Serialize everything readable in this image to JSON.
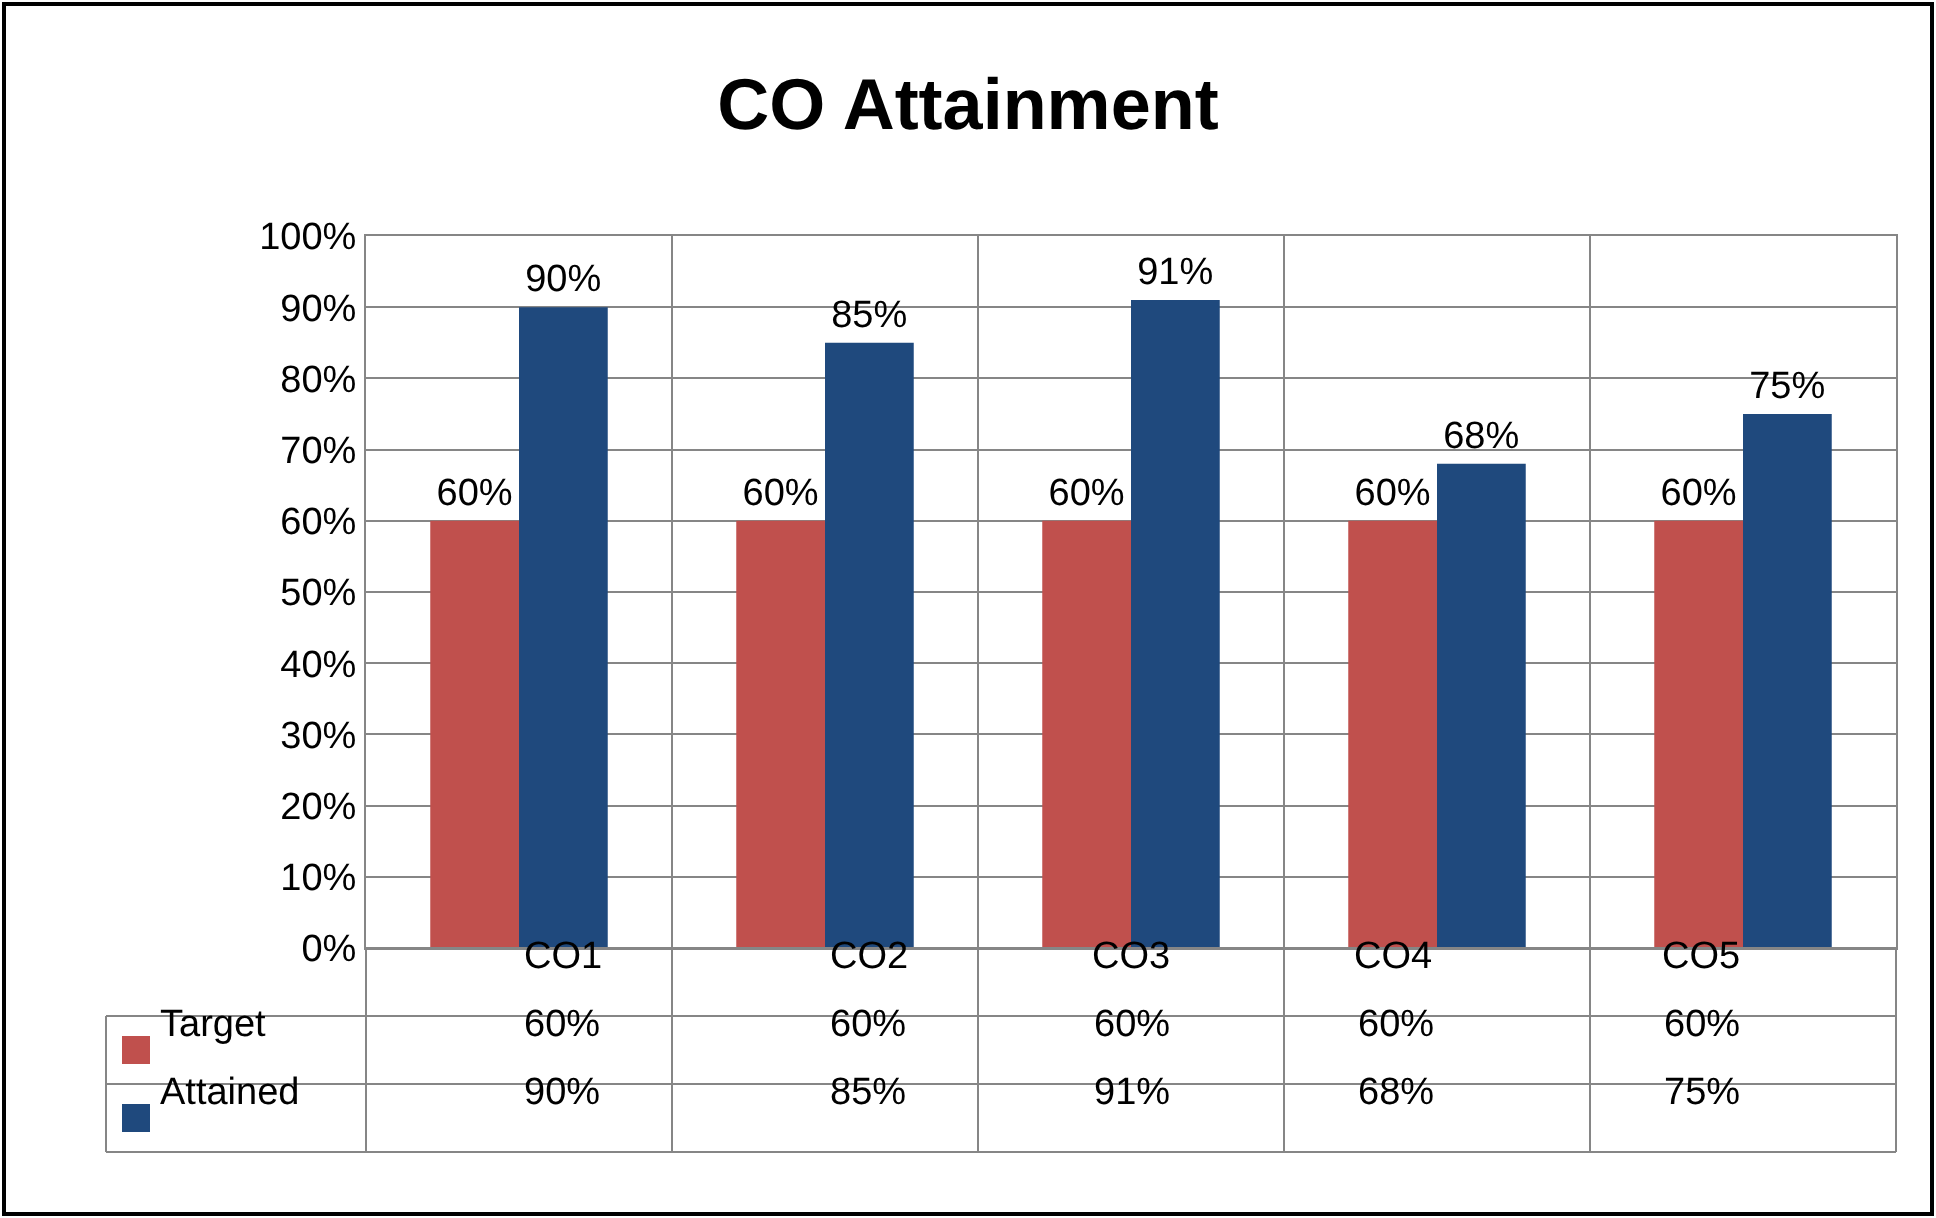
{
  "chart_data": {
    "type": "bar",
    "title": "CO Attainment",
    "categories": [
      "CO1",
      "CO2",
      "CO3",
      "CO4",
      "CO5"
    ],
    "series": [
      {
        "name": "Target",
        "color": "#c0504d",
        "values": [
          60,
          60,
          60,
          60,
          60
        ],
        "value_labels": [
          "60%",
          "60%",
          "60%",
          "60%",
          "60%"
        ]
      },
      {
        "name": "Attained",
        "color": "#1f497d",
        "values": [
          90,
          85,
          91,
          68,
          75
        ],
        "value_labels": [
          "90%",
          "85%",
          "91%",
          "68%",
          "75%"
        ]
      }
    ],
    "ylim": [
      0,
      100
    ],
    "yticks": [
      {
        "value": 0,
        "label": "0%"
      },
      {
        "value": 10,
        "label": "10%"
      },
      {
        "value": 20,
        "label": "20%"
      },
      {
        "value": 30,
        "label": "30%"
      },
      {
        "value": 40,
        "label": "40%"
      },
      {
        "value": 50,
        "label": "50%"
      },
      {
        "value": 60,
        "label": "60%"
      },
      {
        "value": 70,
        "label": "70%"
      },
      {
        "value": 80,
        "label": "80%"
      },
      {
        "value": 90,
        "label": "90%"
      },
      {
        "value": 100,
        "label": "100%"
      }
    ],
    "grid": true,
    "legend": "bottom left"
  }
}
